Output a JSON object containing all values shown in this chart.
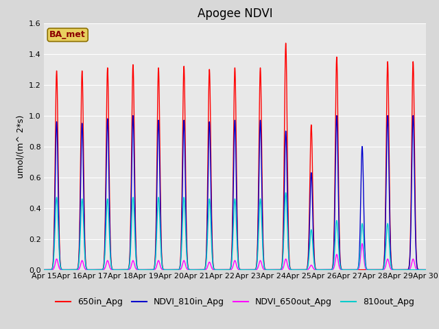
{
  "title": "Apogee NDVI",
  "ylabel": "umol/(m^ 2*s)",
  "ylim": [
    0,
    1.6
  ],
  "yticks": [
    0.0,
    0.2,
    0.4,
    0.6,
    0.8,
    1.0,
    1.2,
    1.4,
    1.6
  ],
  "plot_bg_color": "#e8e8e8",
  "fig_bg_color": "#d8d8d8",
  "legend_label": "BA_met",
  "legend_bg": "#e8d060",
  "legend_border": "#8b7000",
  "series": [
    {
      "name": "650in_Apg",
      "color": "#ff0000",
      "lw": 1.0
    },
    {
      "name": "NDVI_810in_Apg",
      "color": "#0000cc",
      "lw": 1.0
    },
    {
      "name": "NDVI_650out_Apg",
      "color": "#ff00ff",
      "lw": 1.0
    },
    {
      "name": "810out_Apg",
      "color": "#00cccc",
      "lw": 1.0
    }
  ],
  "num_days": 15,
  "start_day": 15,
  "peak_650in": [
    1.29,
    1.29,
    1.31,
    1.33,
    1.31,
    1.32,
    1.3,
    1.31,
    1.31,
    1.47,
    0.94,
    1.38,
    0.0,
    1.35,
    1.35
  ],
  "peak_810in": [
    0.96,
    0.95,
    0.98,
    1.0,
    0.97,
    0.97,
    0.96,
    0.97,
    0.97,
    0.9,
    0.63,
    1.0,
    0.8,
    1.0,
    1.0
  ],
  "peak_650out": [
    0.07,
    0.06,
    0.06,
    0.06,
    0.06,
    0.06,
    0.05,
    0.06,
    0.06,
    0.07,
    0.03,
    0.1,
    0.17,
    0.07,
    0.07
  ],
  "peak_810out": [
    0.47,
    0.46,
    0.46,
    0.47,
    0.47,
    0.47,
    0.46,
    0.46,
    0.46,
    0.5,
    0.26,
    0.32,
    0.3,
    0.3,
    0.0
  ],
  "title_fontsize": 12,
  "tick_fontsize": 8,
  "legend_fontsize": 9,
  "ylabel_fontsize": 9
}
